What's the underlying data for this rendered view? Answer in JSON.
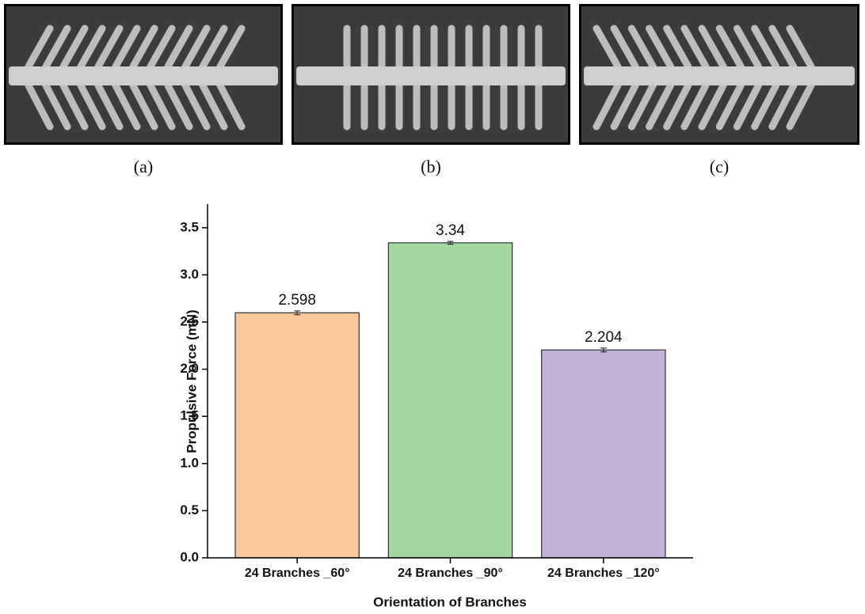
{
  "panels": [
    {
      "caption": "(a)"
    },
    {
      "caption": "(b)"
    },
    {
      "caption": "(c)"
    }
  ],
  "chart_data": {
    "type": "bar",
    "ylabel": "Propulsive Force (mN)",
    "xlabel": "Orientation of Branches",
    "categories": [
      "24 Branches _60°",
      "24 Branches _90°",
      "24 Branches _120°"
    ],
    "values": [
      2.598,
      3.34,
      2.204
    ],
    "errors": [
      0.02,
      0.015,
      0.02
    ],
    "colors": [
      "#f9c89b",
      "#a3d9a0",
      "#c3b1d9"
    ],
    "ylim": [
      0,
      3.75
    ],
    "yticks": [
      {
        "value": 0,
        "label": "0.0"
      },
      0.5,
      {
        "value": 1,
        "label": "1.0"
      },
      1.5,
      {
        "value": 2,
        "label": "2.0"
      },
      2.5,
      {
        "value": 3,
        "label": "3.0"
      },
      3.5
    ]
  }
}
